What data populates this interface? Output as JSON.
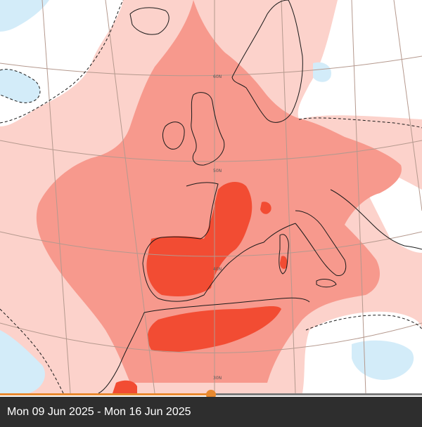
{
  "map": {
    "latitude_labels": [
      "60N",
      "50N",
      "40N",
      "30N"
    ],
    "colors": {
      "very_warm": "#f24c33",
      "warm": "#f7998d",
      "slightly_warm": "#fcd2cb",
      "normal": "#ffffff",
      "cool": "#d3ecf9",
      "cooler": "#a9d9f2",
      "coast": "#1a1a1a",
      "graticule": "#b5998e"
    }
  },
  "timeline": {
    "progress": 0.5,
    "accent": "#e8892f",
    "track": "#7a7a7a"
  },
  "footer": {
    "date_range": "Mon 09 Jun 2025 - Mon 16 Jun 2025"
  }
}
